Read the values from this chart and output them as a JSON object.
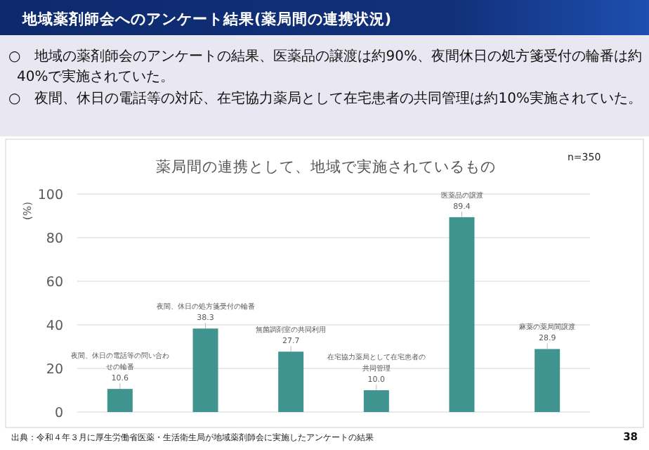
{
  "chart_data": {
    "type": "bar",
    "title": "薬局間の連携として、地域で実施されているもの",
    "subtitle": "地域薬剤師会へのアンケート結果(薬局間の連携状況)",
    "ylabel": "(%)",
    "categories": [
      "夜間、休日の電話等の問い合わせの輪番",
      "夜間、休日の処方箋受付の輪番",
      "無菌調剤室の共同利用",
      "在宅協力薬局として在宅患者の共同管理",
      "医薬品の譲渡",
      "麻薬の薬局間譲渡"
    ],
    "values": [
      10.6,
      38.3,
      27.7,
      10.0,
      89.4,
      28.9
    ],
    "value_labels": [
      "10.6",
      "38.3",
      "27.7",
      "10.0",
      "89.4",
      "28.9"
    ],
    "color": "#3f9490",
    "ylim": [
      0,
      100
    ],
    "yticks": [
      0,
      20,
      40,
      60,
      80,
      100
    ],
    "grid": "y",
    "annotations": [
      "○　地域の薬剤師会のアンケートの結果、医薬品の譲渡は約90%、夜間休日の処方箋受付の輪番は約40%で実施されていた。",
      "○　夜間、休日の電話等の対応、在宅協力薬局として在宅患者の共同管理は約10%実施されていた。",
      "n=350",
      "出典：令和４年３月に厚生労働省医薬・生活衛生局が地域薬剤師会に実施したアンケートの結果",
      "38"
    ]
  }
}
